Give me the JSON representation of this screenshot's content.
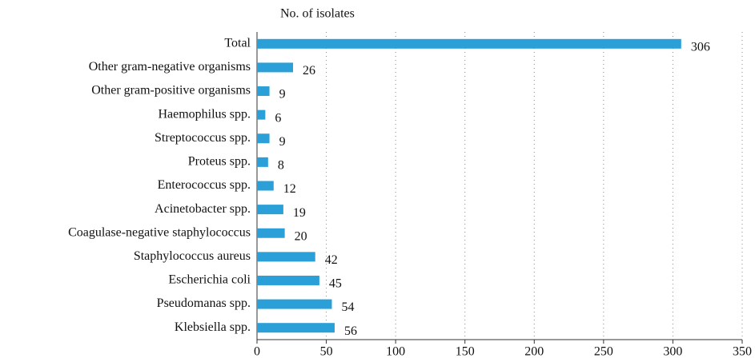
{
  "chart_data": {
    "type": "bar",
    "orientation": "horizontal",
    "axis_title": "No. of isolates",
    "categories": [
      "Total",
      "Other gram-negative organisms",
      "Other gram-positive organisms",
      "Haemophilus spp.",
      "Streptococcus spp.",
      "Proteus spp.",
      "Enterococcus spp.",
      "Acinetobacter spp.",
      "Coagulase-negative staphylococcus",
      "Staphylococcus aureus",
      "Escherichia coli",
      "Pseudomanas spp.",
      "Klebsiella spp."
    ],
    "values": [
      306,
      26,
      9,
      6,
      9,
      8,
      12,
      19,
      20,
      42,
      45,
      54,
      56
    ],
    "color": "#2a9fd8",
    "xlim": [
      0,
      350
    ],
    "xticks": [
      0,
      50,
      100,
      150,
      200,
      250,
      300,
      350
    ],
    "grid": true
  }
}
